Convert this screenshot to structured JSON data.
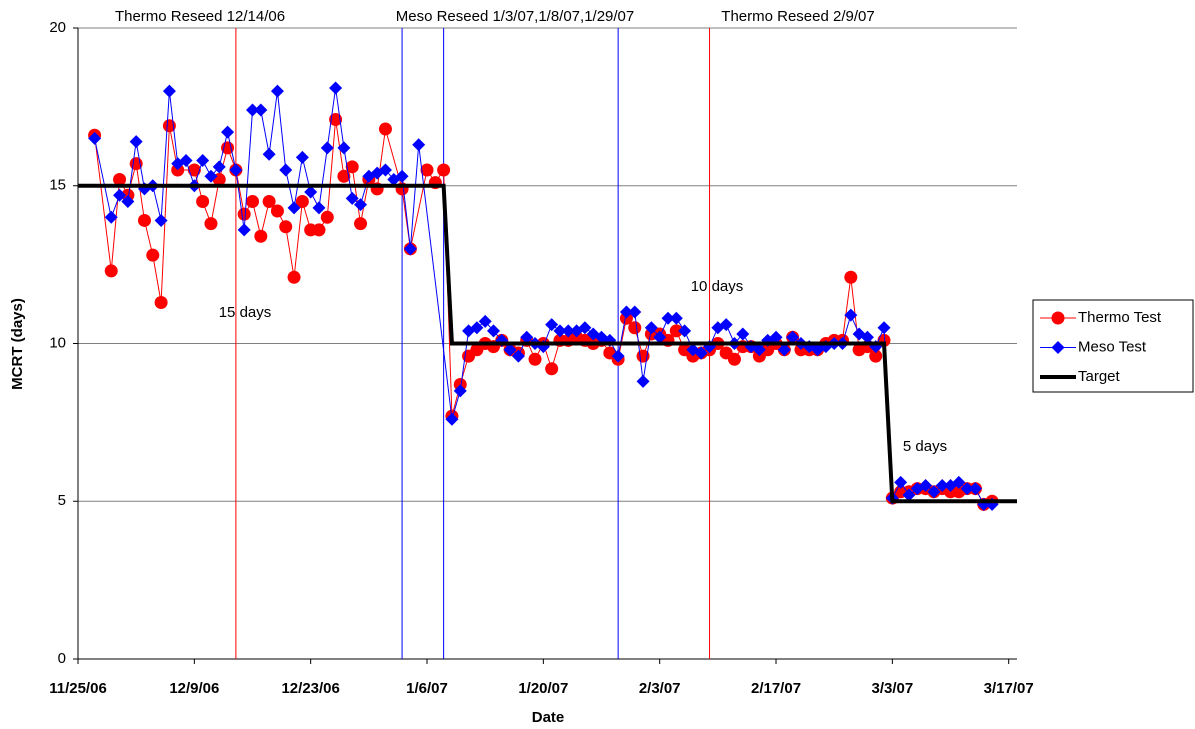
{
  "chart_data": {
    "type": "line",
    "xlabel": "Date",
    "ylabel": "MCRT (days)",
    "xlim": [
      "2006-11-25",
      "2007-03-18"
    ],
    "xticks": [
      {
        "value": "2006-11-25",
        "label": "11/25/06"
      },
      {
        "value": "2006-12-09",
        "label": "12/9/06"
      },
      {
        "value": "2006-12-23",
        "label": "12/23/06"
      },
      {
        "value": "2007-01-06",
        "label": "1/6/07"
      },
      {
        "value": "2007-01-20",
        "label": "1/20/07"
      },
      {
        "value": "2007-02-03",
        "label": "2/3/07"
      },
      {
        "value": "2007-02-17",
        "label": "2/17/07"
      },
      {
        "value": "2007-03-03",
        "label": "3/3/07"
      },
      {
        "value": "2007-03-17",
        "label": "3/17/07"
      }
    ],
    "ylim": [
      0,
      20
    ],
    "yticks": [
      0,
      5,
      10,
      15,
      20
    ],
    "grid": true,
    "legend": "right",
    "annotations": [
      "Thermo Reseed 12/14/06",
      "Meso Reseed 1/3/07,1/8/07,1/29/07",
      "Thermo Reseed 2/9/07",
      "15 days",
      "10 days",
      "5 days"
    ],
    "reseed_lines": [
      {
        "x": "2006-12-14",
        "color": "#ff0000"
      },
      {
        "x": "2007-01-03",
        "color": "#0000ff"
      },
      {
        "x": "2007-01-08",
        "color": "#0000ff"
      },
      {
        "x": "2007-01-29",
        "color": "#0000ff"
      },
      {
        "x": "2007-02-09",
        "color": "#ff0000"
      }
    ],
    "series": [
      {
        "name": "Thermo Test",
        "color": "#ff0000",
        "marker": "circle",
        "x": [
          "2006-11-27",
          "2006-11-29",
          "2006-11-30",
          "2006-12-01",
          "2006-12-02",
          "2006-12-03",
          "2006-12-04",
          "2006-12-05",
          "2006-12-06",
          "2006-12-07",
          "2006-12-09",
          "2006-12-10",
          "2006-12-11",
          "2006-12-12",
          "2006-12-13",
          "2006-12-14",
          "2006-12-15",
          "2006-12-16",
          "2006-12-17",
          "2006-12-18",
          "2006-12-19",
          "2006-12-20",
          "2006-12-21",
          "2006-12-22",
          "2006-12-23",
          "2006-12-24",
          "2006-12-25",
          "2006-12-26",
          "2006-12-27",
          "2006-12-28",
          "2006-12-29",
          "2006-12-30",
          "2006-12-31",
          "2007-01-01",
          "2007-01-03",
          "2007-01-04",
          "2007-01-06",
          "2007-01-07",
          "2007-01-08",
          "2007-01-09",
          "2007-01-10",
          "2007-01-11",
          "2007-01-12",
          "2007-01-13",
          "2007-01-14",
          "2007-01-15",
          "2007-01-16",
          "2007-01-17",
          "2007-01-18",
          "2007-01-19",
          "2007-01-20",
          "2007-01-21",
          "2007-01-22",
          "2007-01-23",
          "2007-01-24",
          "2007-01-25",
          "2007-01-26",
          "2007-01-27",
          "2007-01-28",
          "2007-01-29",
          "2007-01-30",
          "2007-01-31",
          "2007-02-01",
          "2007-02-02",
          "2007-02-03",
          "2007-02-04",
          "2007-02-05",
          "2007-02-06",
          "2007-02-07",
          "2007-02-08",
          "2007-02-09",
          "2007-02-10",
          "2007-02-11",
          "2007-02-12",
          "2007-02-13",
          "2007-02-14",
          "2007-02-15",
          "2007-02-16",
          "2007-02-17",
          "2007-02-18",
          "2007-02-19",
          "2007-02-20",
          "2007-02-21",
          "2007-02-22",
          "2007-02-23",
          "2007-02-24",
          "2007-02-25",
          "2007-02-26",
          "2007-02-27",
          "2007-02-28",
          "2007-03-01",
          "2007-03-02",
          "2007-03-03",
          "2007-03-04",
          "2007-03-05",
          "2007-03-06",
          "2007-03-07",
          "2007-03-08",
          "2007-03-09",
          "2007-03-10",
          "2007-03-11",
          "2007-03-12",
          "2007-03-13",
          "2007-03-14",
          "2007-03-15"
        ],
        "values": [
          16.6,
          12.3,
          15.2,
          14.7,
          15.7,
          13.9,
          12.8,
          11.3,
          16.9,
          15.5,
          15.5,
          14.5,
          13.8,
          15.2,
          16.2,
          15.5,
          14.1,
          14.5,
          13.4,
          14.5,
          14.2,
          13.7,
          12.1,
          14.5,
          13.6,
          13.6,
          14.0,
          17.1,
          15.3,
          15.6,
          13.8,
          15.2,
          14.9,
          16.8,
          14.9,
          13.0,
          15.5,
          15.1,
          15.5,
          7.7,
          8.7,
          9.6,
          9.8,
          10.0,
          9.9,
          10.1,
          9.8,
          9.7,
          10.1,
          9.5,
          10.0,
          9.2,
          10.1,
          10.1,
          10.2,
          10.1,
          10.0,
          10.1,
          9.7,
          9.5,
          10.8,
          10.5,
          9.6,
          10.3,
          10.3,
          10.1,
          10.4,
          9.8,
          9.6,
          9.7,
          9.8,
          10.0,
          9.7,
          9.5,
          9.9,
          9.9,
          9.6,
          9.8,
          10.0,
          9.8,
          10.2,
          9.8,
          9.8,
          9.8,
          10.0,
          10.1,
          10.1,
          12.1,
          9.8,
          9.9,
          9.6,
          10.1,
          5.1,
          5.3,
          5.3,
          5.4,
          5.4,
          5.3,
          5.4,
          5.3,
          5.3,
          5.4,
          5.4,
          4.9,
          5.0
        ]
      },
      {
        "name": "Meso Test",
        "color": "#0000ff",
        "marker": "diamond",
        "x": [
          "2006-11-27",
          "2006-11-29",
          "2006-11-30",
          "2006-12-01",
          "2006-12-02",
          "2006-12-03",
          "2006-12-04",
          "2006-12-05",
          "2006-12-06",
          "2006-12-07",
          "2006-12-08",
          "2006-12-09",
          "2006-12-10",
          "2006-12-11",
          "2006-12-12",
          "2006-12-13",
          "2006-12-14",
          "2006-12-15",
          "2006-12-16",
          "2006-12-17",
          "2006-12-18",
          "2006-12-19",
          "2006-12-20",
          "2006-12-21",
          "2006-12-22",
          "2006-12-23",
          "2006-12-24",
          "2006-12-25",
          "2006-12-26",
          "2006-12-27",
          "2006-12-28",
          "2006-12-29",
          "2006-12-30",
          "2006-12-31",
          "2007-01-01",
          "2007-01-02",
          "2007-01-03",
          "2007-01-04",
          "2007-01-05",
          "2007-01-09",
          "2007-01-10",
          "2007-01-11",
          "2007-01-12",
          "2007-01-13",
          "2007-01-14",
          "2007-01-15",
          "2007-01-16",
          "2007-01-17",
          "2007-01-18",
          "2007-01-19",
          "2007-01-20",
          "2007-01-21",
          "2007-01-22",
          "2007-01-23",
          "2007-01-24",
          "2007-01-25",
          "2007-01-26",
          "2007-01-27",
          "2007-01-28",
          "2007-01-29",
          "2007-01-30",
          "2007-01-31",
          "2007-02-01",
          "2007-02-02",
          "2007-02-03",
          "2007-02-04",
          "2007-02-05",
          "2007-02-06",
          "2007-02-07",
          "2007-02-08",
          "2007-02-09",
          "2007-02-10",
          "2007-02-11",
          "2007-02-12",
          "2007-02-13",
          "2007-02-14",
          "2007-02-15",
          "2007-02-16",
          "2007-02-17",
          "2007-02-18",
          "2007-02-19",
          "2007-02-20",
          "2007-02-21",
          "2007-02-22",
          "2007-02-23",
          "2007-02-24",
          "2007-02-25",
          "2007-02-26",
          "2007-02-27",
          "2007-02-28",
          "2007-03-01",
          "2007-03-02",
          "2007-03-03",
          "2007-03-04",
          "2007-03-05",
          "2007-03-06",
          "2007-03-07",
          "2007-03-08",
          "2007-03-09",
          "2007-03-10",
          "2007-03-11",
          "2007-03-12",
          "2007-03-13",
          "2007-03-14",
          "2007-03-15"
        ],
        "values": [
          16.5,
          14.0,
          14.7,
          14.5,
          16.4,
          14.9,
          15.0,
          13.9,
          18.0,
          15.7,
          15.8,
          15.0,
          15.8,
          15.3,
          15.6,
          16.7,
          15.5,
          13.6,
          17.4,
          17.4,
          16.0,
          18.0,
          15.5,
          14.3,
          15.9,
          14.8,
          14.3,
          16.2,
          18.1,
          16.2,
          14.6,
          14.4,
          15.3,
          15.4,
          15.5,
          15.2,
          15.3,
          13.0,
          16.3,
          7.6,
          8.5,
          10.4,
          10.5,
          10.7,
          10.4,
          10.1,
          9.8,
          9.6,
          10.2,
          10.0,
          9.9,
          10.6,
          10.4,
          10.4,
          10.4,
          10.5,
          10.3,
          10.2,
          10.1,
          9.6,
          11.0,
          11.0,
          8.8,
          10.5,
          10.2,
          10.8,
          10.8,
          10.4,
          9.8,
          9.7,
          9.9,
          10.5,
          10.6,
          10.0,
          10.3,
          9.9,
          9.8,
          10.1,
          10.2,
          9.8,
          10.2,
          10.0,
          9.9,
          9.8,
          9.9,
          10.0,
          10.0,
          10.9,
          10.3,
          10.2,
          9.9,
          10.5,
          5.1,
          5.6,
          5.2,
          5.4,
          5.5,
          5.3,
          5.5,
          5.5,
          5.6,
          5.4,
          5.4,
          4.9,
          4.9
        ]
      },
      {
        "name": "Target",
        "color": "#000000",
        "marker": "none",
        "line_width": 4,
        "x": [
          "2006-11-25",
          "2007-01-08",
          "2007-01-09",
          "2007-03-02",
          "2007-03-03",
          "2007-03-18"
        ],
        "values": [
          15,
          15,
          10,
          10,
          5,
          5
        ]
      }
    ]
  }
}
